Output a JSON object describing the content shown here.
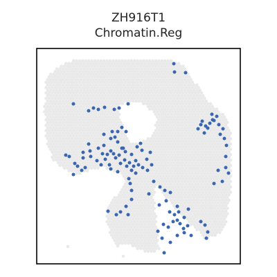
{
  "chart_data": {
    "type": "scatter",
    "title_line1": "ZH916T1",
    "title_line2": "Chromatin.Reg",
    "xlabel": "",
    "ylabel": "",
    "grid": false,
    "legend": "none",
    "colors": {
      "background_spots": "#e9e9e9",
      "highlight_spots": "#3a66b0",
      "frame": "#000000"
    },
    "series": [
      {
        "values": [
          [
            106,
            150
          ],
          [
            128,
            160
          ],
          [
            135,
            156
          ],
          [
            142,
            158
          ],
          [
            151,
            155
          ],
          [
            165,
            158
          ],
          [
            172,
            156
          ],
          [
            185,
            150
          ],
          [
            162,
            190
          ],
          [
            150,
            194
          ],
          [
            150,
            210
          ],
          [
            160,
            200
          ],
          [
            166,
            198
          ],
          [
            170,
            205
          ],
          [
            178,
            214
          ],
          [
            172,
            224
          ],
          [
            180,
            231
          ],
          [
            190,
            223
          ],
          [
            182,
            190
          ],
          [
            176,
            184
          ],
          [
            128,
            208
          ],
          [
            130,
            218
          ],
          [
            120,
            228
          ],
          [
            108,
            236
          ],
          [
            100,
            226
          ],
          [
            95,
            224
          ],
          [
            112,
            240
          ],
          [
            123,
            242
          ],
          [
            140,
            232
          ],
          [
            146,
            238
          ],
          [
            152,
            230
          ],
          [
            158,
            238
          ],
          [
            164,
            222
          ],
          [
            167,
            228
          ],
          [
            174,
            236
          ],
          [
            183,
            240
          ],
          [
            190,
            246
          ],
          [
            196,
            232
          ],
          [
            200,
            238
          ],
          [
            206,
            242
          ],
          [
            212,
            230
          ],
          [
            213,
            246
          ],
          [
            217,
            220
          ],
          [
            205,
            217
          ],
          [
            198,
            212
          ],
          [
            160,
            244
          ],
          [
            170,
            248
          ],
          [
            106,
            252
          ],
          [
            118,
            246
          ],
          [
            186,
            258
          ],
          [
            196,
            250
          ],
          [
            222,
            262
          ],
          [
            231,
            270
          ],
          [
            238,
            275
          ],
          [
            246,
            278
          ],
          [
            188,
            265
          ],
          [
            190,
            275
          ],
          [
            190,
            288
          ],
          [
            182,
            298
          ],
          [
            185,
            310
          ],
          [
            168,
            310
          ],
          [
            174,
            306
          ],
          [
            156,
            305
          ],
          [
            215,
            280
          ],
          [
            230,
            296
          ],
          [
            240,
            290
          ],
          [
            245,
            306
          ],
          [
            252,
            310
          ],
          [
            256,
            318
          ],
          [
            260,
            323
          ],
          [
            265,
            330
          ],
          [
            271,
            326
          ],
          [
            266,
            314
          ],
          [
            258,
            306
          ],
          [
            250,
            320
          ],
          [
            243,
            328
          ],
          [
            236,
            324
          ],
          [
            228,
            334
          ],
          [
            234,
            344
          ],
          [
            246,
            350
          ],
          [
            256,
            340
          ],
          [
            266,
            336
          ],
          [
            276,
            340
          ],
          [
            290,
            320
          ],
          [
            296,
            325
          ],
          [
            300,
            335
          ],
          [
            298,
            344
          ],
          [
            256,
            298
          ],
          [
            272,
            302
          ],
          [
            237,
            365
          ],
          [
            251,
            92
          ],
          [
            252,
            104
          ],
          [
            268,
            105
          ],
          [
            292,
            175
          ],
          [
            297,
            182
          ],
          [
            303,
            178
          ],
          [
            309,
            174
          ],
          [
            316,
            180
          ],
          [
            322,
            186
          ],
          [
            313,
            168
          ],
          [
            306,
            165
          ],
          [
            300,
            185
          ],
          [
            295,
            192
          ],
          [
            286,
            186
          ],
          [
            290,
            180
          ],
          [
            318,
            194
          ],
          [
            324,
            200
          ],
          [
            327,
            210
          ],
          [
            326,
            226
          ],
          [
            326,
            242
          ],
          [
            330,
            250
          ],
          [
            315,
            246
          ],
          [
            321,
            262
          ],
          [
            309,
            265
          ],
          [
            307,
            173
          ],
          [
            142,
            214
          ],
          [
            148,
            222
          ],
          [
            131,
            226
          ],
          [
            176,
            214
          ],
          [
            120,
            220
          ],
          [
            170,
            190
          ],
          [
            160,
            218
          ],
          [
            155,
            223
          ],
          [
            181,
            219
          ],
          [
            203,
            207
          ],
          [
            187,
            235
          ],
          [
            193,
            240
          ],
          [
            219,
            238
          ]
        ]
      }
    ]
  }
}
